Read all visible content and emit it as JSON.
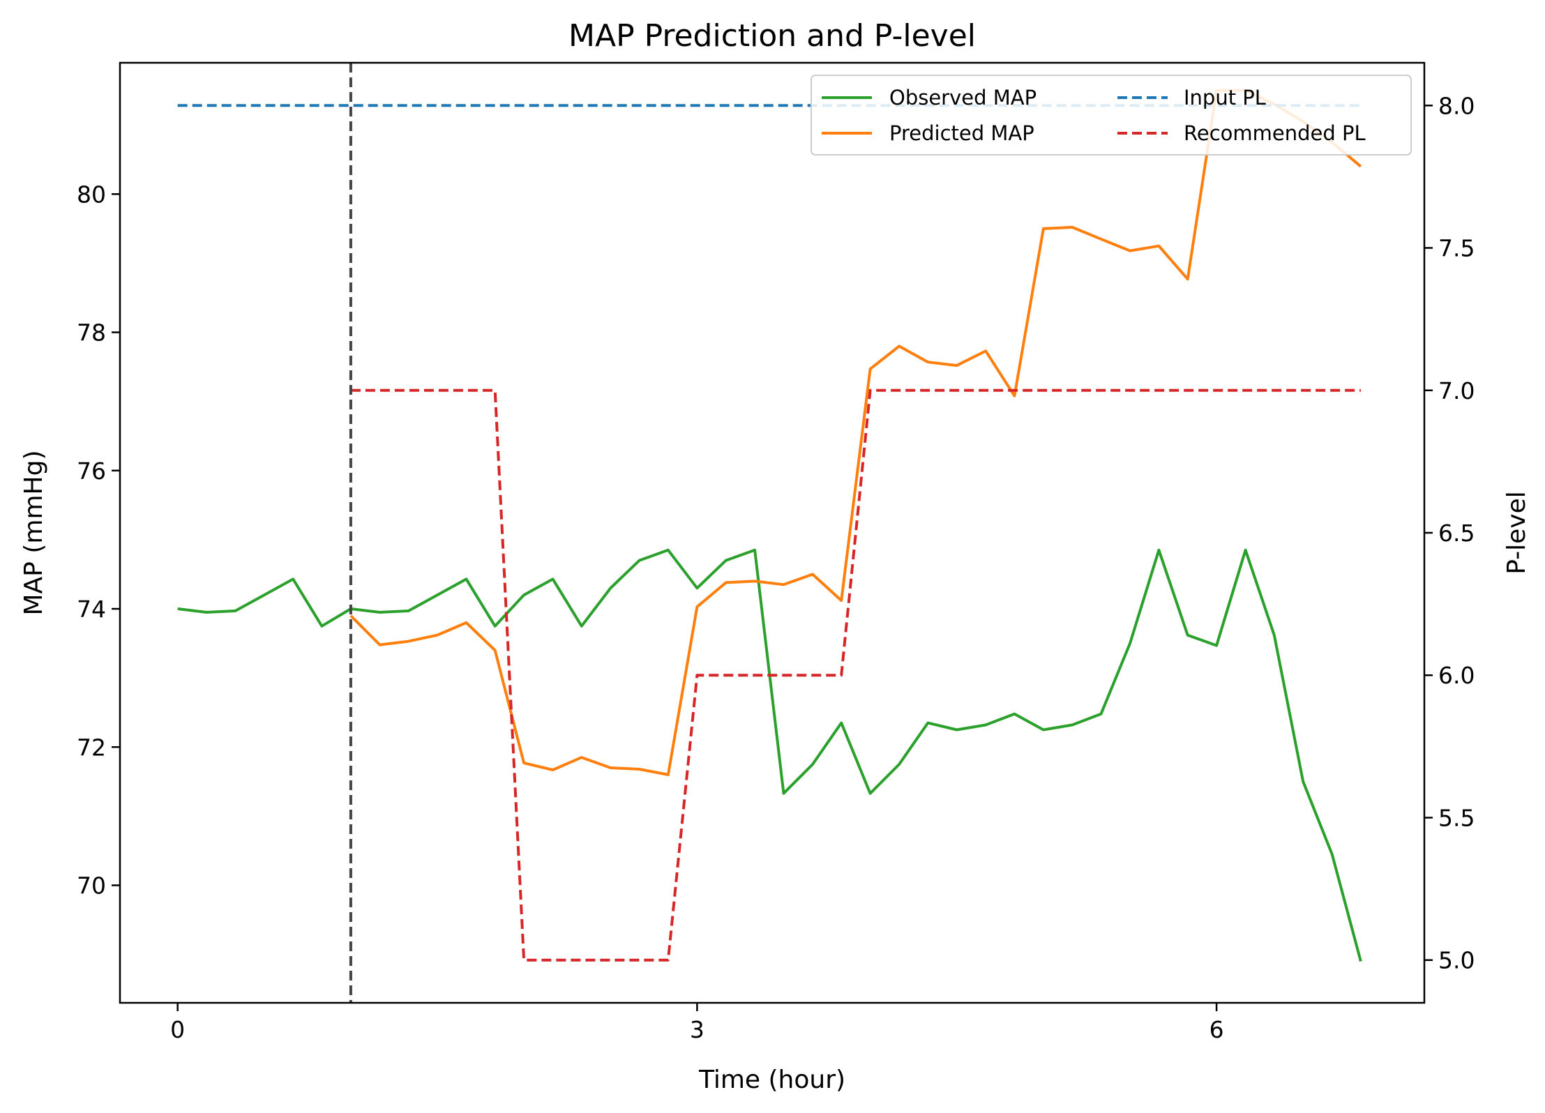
{
  "chart_data": {
    "type": "line",
    "title": "MAP Prediction and P-level",
    "xlabel": "Time (hour)",
    "ylabel": "MAP (mmHg)",
    "y2label": "P-level",
    "xlim": [
      -0.333,
      7.2
    ],
    "ylim": [
      68.3,
      81.9
    ],
    "y2lim": [
      4.85,
      8.15
    ],
    "xticks": [
      0,
      3,
      6
    ],
    "yticks": [
      70,
      72,
      74,
      76,
      78,
      80
    ],
    "y2ticks": [
      5.0,
      5.5,
      6.0,
      6.5,
      7.0,
      7.5,
      8.0
    ],
    "grid": false,
    "legend_placement": "top-right",
    "legend_columns": 2,
    "vline": {
      "x": 1.0,
      "color": "#444444",
      "style": "dashed"
    },
    "series": [
      {
        "name": "Observed MAP",
        "axis": "left",
        "color": "#2ca02c",
        "style": "solid",
        "x": [
          0,
          0.167,
          0.333,
          0.5,
          0.667,
          0.833,
          1.0,
          1.167,
          1.333,
          1.5,
          1.667,
          1.833,
          2.0,
          2.167,
          2.333,
          2.5,
          2.667,
          2.833,
          3.0,
          3.167,
          3.333,
          3.5,
          3.667,
          3.833,
          4.0,
          4.167,
          4.333,
          4.5,
          4.667,
          4.833,
          5.0,
          5.167,
          5.333,
          5.5,
          5.667,
          5.833,
          6.0,
          6.167,
          6.333,
          6.5,
          6.667,
          6.833
        ],
        "values": [
          74.0,
          73.95,
          73.97,
          74.2,
          74.43,
          73.75,
          74.0,
          73.95,
          73.97,
          74.2,
          74.43,
          73.75,
          74.2,
          74.43,
          73.75,
          74.3,
          74.7,
          74.85,
          74.3,
          74.7,
          74.85,
          71.33,
          71.75,
          72.35,
          71.33,
          71.75,
          72.35,
          72.25,
          72.32,
          72.48,
          72.25,
          72.32,
          72.48,
          73.5,
          74.85,
          73.62,
          73.47,
          74.85,
          73.62,
          71.5,
          70.45,
          68.9
        ]
      },
      {
        "name": "Predicted MAP",
        "axis": "left",
        "color": "#ff7f0e",
        "style": "solid",
        "x": [
          1.0,
          1.167,
          1.333,
          1.5,
          1.667,
          1.833,
          2.0,
          2.167,
          2.333,
          2.5,
          2.667,
          2.833,
          3.0,
          3.167,
          3.333,
          3.5,
          3.667,
          3.833,
          4.0,
          4.167,
          4.333,
          4.5,
          4.667,
          4.833,
          5.0,
          5.167,
          5.333,
          5.5,
          5.667,
          5.833,
          6.0,
          6.167,
          6.333,
          6.5,
          6.667,
          6.833
        ],
        "values": [
          73.9,
          73.48,
          73.53,
          73.62,
          73.8,
          73.4,
          71.77,
          71.67,
          71.85,
          71.7,
          71.68,
          71.6,
          74.03,
          74.38,
          74.4,
          74.35,
          74.5,
          74.12,
          77.47,
          77.8,
          77.57,
          77.52,
          77.73,
          77.08,
          79.5,
          79.52,
          79.35,
          79.18,
          79.25,
          78.77,
          81.5,
          81.5,
          81.3,
          81.05,
          80.75,
          80.4
        ]
      },
      {
        "name": "Input PL",
        "axis": "right",
        "color": "#1f77b4",
        "style": "dashed",
        "x": [
          0,
          6.833
        ],
        "values": [
          8.0,
          8.0
        ]
      },
      {
        "name": "Recommended PL",
        "axis": "right",
        "color": "#d62728",
        "style": "dashed",
        "x": [
          1.0,
          1.833,
          2.0,
          2.833,
          3.0,
          3.833,
          4.0,
          6.833
        ],
        "values": [
          7.0,
          7.0,
          5.0,
          5.0,
          6.0,
          6.0,
          7.0,
          7.0
        ]
      }
    ]
  }
}
